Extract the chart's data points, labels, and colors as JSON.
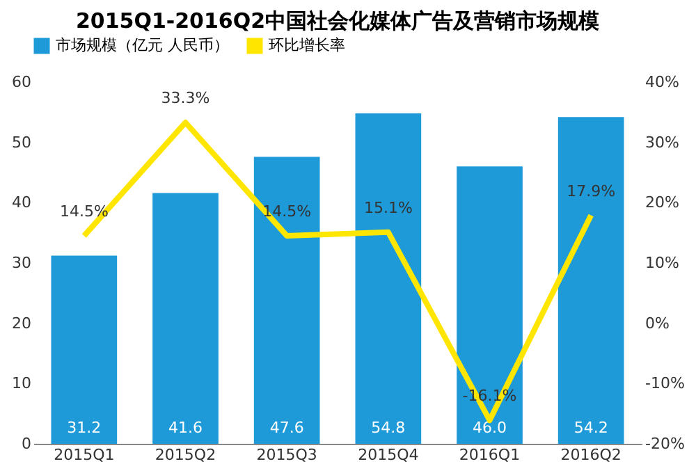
{
  "chart_data": {
    "type": "bar",
    "title": "2015Q1-2016Q2中国社会化媒体广告及营销市场规模",
    "categories": [
      "2015Q1",
      "2015Q2",
      "2015Q3",
      "2015Q4",
      "2016Q1",
      "2016Q2"
    ],
    "series": [
      {
        "name": "市场规模（亿元 人民币）",
        "color": "#1e9ad8",
        "values": [
          31.2,
          41.6,
          47.6,
          54.8,
          46.0,
          54.2
        ],
        "value_labels": [
          "31.2",
          "41.6",
          "47.6",
          "54.8",
          "46.0",
          "54.2"
        ]
      },
      {
        "name": "环比增长率",
        "type": "line",
        "axis": "y2",
        "color": "#ffe600",
        "values": [
          14.5,
          33.3,
          14.5,
          15.1,
          -16.1,
          17.9
        ],
        "value_labels": [
          "14.5%",
          "33.3%",
          "14.5%",
          "15.1%",
          "-16.1%",
          "17.9%"
        ]
      }
    ],
    "ylim": [
      0,
      60
    ],
    "yticks": [
      0,
      10,
      20,
      30,
      40,
      50,
      60
    ],
    "y2lim": [
      -20,
      40
    ],
    "y2ticks": [
      {
        "value": -20,
        "label": "-20%"
      },
      {
        "value": -10,
        "label": "-10%"
      },
      {
        "value": 0,
        "label": "0%"
      },
      {
        "value": 10,
        "label": "10%"
      },
      {
        "value": 20,
        "label": "20%"
      },
      {
        "value": 30,
        "label": "30%"
      },
      {
        "value": 40,
        "label": "40%"
      }
    ],
    "legend": "top",
    "grid": false,
    "marker": "none"
  }
}
